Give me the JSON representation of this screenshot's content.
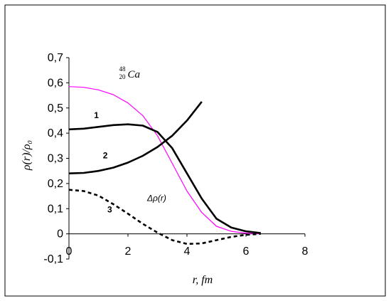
{
  "chart_data": {
    "type": "line",
    "xlabel": "r, fm",
    "ylabel": "ρ(r)/ρ₀",
    "xlim": [
      0,
      8
    ],
    "ylim": [
      -0.1,
      0.7
    ],
    "x_ticks": [
      "0",
      "2",
      "4",
      "6",
      "8"
    ],
    "y_ticks": [
      "-0,1",
      "0",
      "0,1",
      "0,2",
      "0,3",
      "0,4",
      "0,5",
      "0,6",
      "0,7"
    ],
    "grid": false,
    "legend": "none",
    "series": [
      {
        "color": "#ff00ff",
        "style": "solid",
        "x": [
          0,
          0.5,
          1.0,
          1.5,
          2.0,
          2.5,
          3.0,
          3.5,
          4.0,
          4.5,
          5.0,
          5.5,
          6.0,
          6.5
        ],
        "y": [
          0.585,
          0.582,
          0.572,
          0.553,
          0.52,
          0.47,
          0.39,
          0.28,
          0.17,
          0.085,
          0.03,
          0.01,
          0.003,
          0.0
        ]
      },
      {
        "color": "#000000",
        "style": "solid",
        "x": [
          0,
          0.5,
          1.0,
          1.5,
          2.0,
          2.5,
          3.0,
          3.5,
          4.0,
          4.5,
          5.0,
          5.5,
          6.0,
          6.5
        ],
        "y": [
          0.415,
          0.418,
          0.425,
          0.432,
          0.435,
          0.43,
          0.405,
          0.34,
          0.24,
          0.14,
          0.06,
          0.025,
          0.01,
          0.003
        ]
      },
      {
        "color": "#000000",
        "style": "solid",
        "x": [
          0,
          0.5,
          1.0,
          1.5,
          2.0,
          2.5,
          3.0,
          3.5,
          4.0,
          4.5
        ],
        "y": [
          0.24,
          0.242,
          0.25,
          0.263,
          0.283,
          0.31,
          0.345,
          0.39,
          0.45,
          0.525
        ]
      },
      {
        "color": "#000000",
        "style": "dashed",
        "x": [
          0,
          0.5,
          1.0,
          1.5,
          2.0,
          2.5,
          3.0,
          3.5,
          4.0,
          4.5,
          5.0,
          5.5,
          6.0,
          6.5
        ],
        "y": [
          0.175,
          0.17,
          0.152,
          0.118,
          0.08,
          0.04,
          0.005,
          -0.025,
          -0.04,
          -0.038,
          -0.025,
          -0.012,
          -0.004,
          0.0
        ]
      }
    ],
    "annotations": [
      {
        "text": "1",
        "x": 0.85,
        "y": 0.46
      },
      {
        "text": "2",
        "x": 1.15,
        "y": 0.3
      },
      {
        "text": "3",
        "x": 1.3,
        "y": 0.085
      },
      {
        "text": "Δρ(r)",
        "x": 2.65,
        "y": 0.13
      }
    ],
    "nucleus_label": {
      "mass": "48",
      "charge": "20",
      "symbol": "Ca",
      "x": 1.7,
      "y": 0.63
    }
  }
}
